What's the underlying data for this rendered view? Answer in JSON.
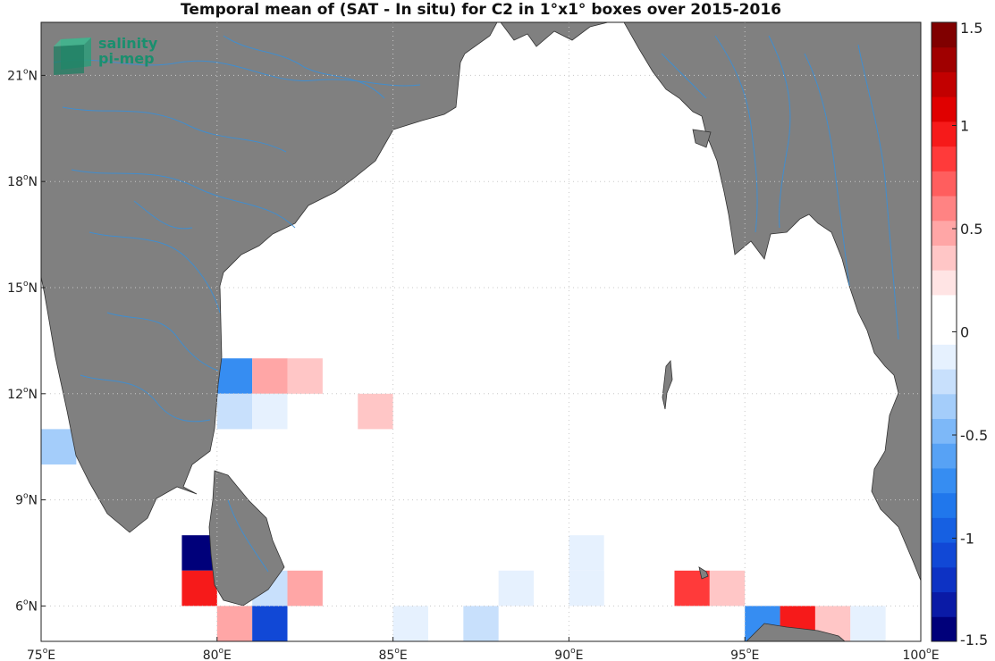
{
  "title": "Temporal mean of (SAT - In situ) for C2 in 1°x1° boxes over 2015-2016",
  "logo": {
    "line1": "salinity",
    "line2": "pi-mep"
  },
  "map": {
    "lon_range": [
      75,
      100
    ],
    "lat_range": [
      5,
      22.5
    ],
    "lon_ticks": [
      {
        "v": 75,
        "label": "75",
        "suffix": "E"
      },
      {
        "v": 80,
        "label": "80",
        "suffix": "E"
      },
      {
        "v": 85,
        "label": "85",
        "suffix": "E"
      },
      {
        "v": 90,
        "label": "90",
        "suffix": "E"
      },
      {
        "v": 95,
        "label": "95",
        "suffix": "E"
      },
      {
        "v": 100,
        "label": "100",
        "suffix": "E"
      }
    ],
    "lat_ticks": [
      {
        "v": 6,
        "label": "6",
        "suffix": "N"
      },
      {
        "v": 9,
        "label": "9",
        "suffix": "N"
      },
      {
        "v": 12,
        "label": "12",
        "suffix": "N"
      },
      {
        "v": 15,
        "label": "15",
        "suffix": "N"
      },
      {
        "v": 18,
        "label": "18",
        "suffix": "N"
      },
      {
        "v": 21,
        "label": "21",
        "suffix": "N"
      }
    ],
    "land_color": "#808080",
    "river_color": "#3b8fd6",
    "grid": "dotted",
    "boxes": [
      {
        "lon": 75,
        "lat": 10,
        "value": -0.35
      },
      {
        "lon": 80,
        "lat": 12,
        "value": -0.75
      },
      {
        "lon": 81,
        "lat": 12,
        "value": 0.45
      },
      {
        "lon": 82,
        "lat": 12,
        "value": 0.3
      },
      {
        "lon": 80,
        "lat": 11,
        "value": -0.3
      },
      {
        "lon": 81,
        "lat": 11,
        "value": -0.15
      },
      {
        "lon": 84,
        "lat": 11,
        "value": 0.35
      },
      {
        "lon": 79,
        "lat": 7,
        "value": -1.5
      },
      {
        "lon": 79,
        "lat": 6,
        "value": 0.95
      },
      {
        "lon": 81,
        "lat": 6,
        "value": -0.2
      },
      {
        "lon": 82,
        "lat": 6,
        "value": 0.5
      },
      {
        "lon": 80,
        "lat": 5,
        "value": 0.5
      },
      {
        "lon": 81,
        "lat": 5,
        "value": -1.05
      },
      {
        "lon": 85,
        "lat": 5,
        "value": -0.15
      },
      {
        "lon": 87,
        "lat": 5,
        "value": -0.3
      },
      {
        "lon": 88,
        "lat": 6,
        "value": -0.15
      },
      {
        "lon": 90,
        "lat": 7,
        "value": -0.15
      },
      {
        "lon": 90,
        "lat": 6,
        "value": -0.15
      },
      {
        "lon": 91,
        "lat": 7,
        "value": 0.15
      },
      {
        "lon": 92,
        "lat": 7,
        "value": 0.15
      },
      {
        "lon": 92,
        "lat": 6,
        "value": 0.15
      },
      {
        "lon": 93,
        "lat": 6,
        "value": 0.8
      },
      {
        "lon": 94,
        "lat": 6,
        "value": 0.35
      },
      {
        "lon": 95,
        "lat": 5,
        "value": -0.7
      },
      {
        "lon": 96,
        "lat": 5,
        "value": 0.95
      },
      {
        "lon": 97,
        "lat": 5,
        "value": 0.35
      },
      {
        "lon": 98,
        "lat": 5,
        "value": -0.15
      }
    ]
  },
  "colorbar": {
    "min": -1.5,
    "max": 1.5,
    "ticks": [
      {
        "v": 1.5,
        "label": "1.5"
      },
      {
        "v": 1,
        "label": "1"
      },
      {
        "v": 0.5,
        "label": "0.5"
      },
      {
        "v": 0,
        "label": "0"
      },
      {
        "v": -0.5,
        "label": "-0.5"
      },
      {
        "v": -1,
        "label": "-1"
      },
      {
        "v": -1.5,
        "label": "-1.5"
      }
    ],
    "colors": [
      "#00007a",
      "#0a1aa6",
      "#0d32c4",
      "#1148d6",
      "#1660e2",
      "#2077ec",
      "#368df2",
      "#57a2f5",
      "#7db8f8",
      "#a4cdfa",
      "#c8e0fc",
      "#e6f1fe",
      "#ffffff",
      "#ffffff",
      "#ffe4e4",
      "#ffc6c6",
      "#ffa6a6",
      "#ff8383",
      "#ff5e5e",
      "#ff3a3a",
      "#f61a1a",
      "#e00000",
      "#c20000",
      "#a00000",
      "#800000"
    ]
  }
}
